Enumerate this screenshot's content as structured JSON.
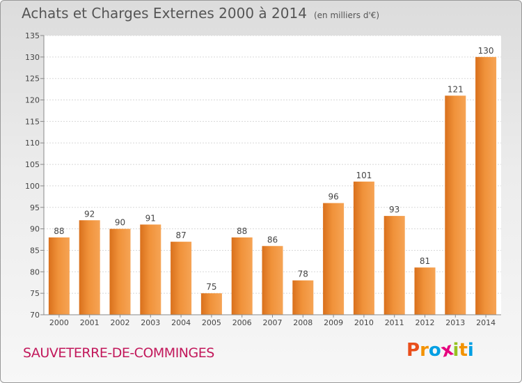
{
  "title": "Achats et Charges Externes 2000 à 2014",
  "subtitle": "(en milliers d'€)",
  "commune": "SAUVETERRE-DE-COMMINGES",
  "logo": {
    "letters": [
      "P",
      "r",
      "o",
      "x",
      "i",
      "t",
      "i"
    ],
    "colors": [
      "#e94e1b",
      "#f39200",
      "#009fe3",
      "#e6007e",
      "#95c11f",
      "#f39200",
      "#009fe3"
    ]
  },
  "chart_data": {
    "type": "bar",
    "title": "Achats et Charges Externes 2000 à 2014",
    "categories": [
      "2000",
      "2001",
      "2002",
      "2003",
      "2004",
      "2005",
      "2006",
      "2007",
      "2008",
      "2009",
      "2010",
      "2011",
      "2012",
      "2013",
      "2014"
    ],
    "values": [
      88,
      92,
      90,
      91,
      87,
      75,
      88,
      86,
      78,
      96,
      101,
      93,
      81,
      121,
      130
    ],
    "ylim": [
      70,
      135
    ],
    "yticks": [
      70,
      75,
      80,
      85,
      90,
      95,
      100,
      105,
      110,
      115,
      120,
      125,
      130,
      135
    ],
    "grid": true,
    "bar_color": "#f0923a"
  }
}
